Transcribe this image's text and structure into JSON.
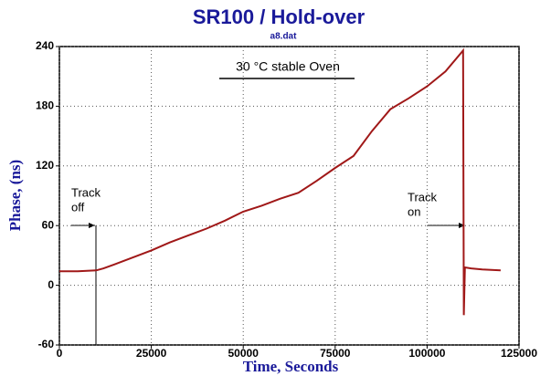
{
  "chart_data": {
    "type": "line",
    "title": "SR100  /  Hold-over",
    "subtitle": "a8.dat",
    "xlabel": "Time, Seconds",
    "ylabel": "Phase, (ns)",
    "annotations": [
      "30 °C  stable Oven",
      "Track",
      "off",
      "Track",
      "on"
    ],
    "x": [
      0,
      5000,
      10000,
      12000,
      15000,
      20000,
      25000,
      30000,
      35000,
      40000,
      45000,
      50000,
      55000,
      60000,
      65000,
      70000,
      75000,
      80000,
      85000,
      90000,
      95000,
      100000,
      105000,
      109800,
      110000,
      110300,
      112000,
      115000,
      120000
    ],
    "values": [
      14,
      14,
      15,
      17,
      21,
      28,
      35,
      43,
      50,
      57,
      65,
      74,
      80,
      87,
      93,
      105,
      118,
      130,
      155,
      177,
      188,
      200,
      215,
      236,
      -30,
      18,
      17,
      16,
      15
    ],
    "color": "#a01818",
    "xlim": [
      0,
      125000
    ],
    "xticks": [
      0,
      25000,
      50000,
      75000,
      100000,
      125000
    ],
    "ylim": [
      -60,
      240
    ],
    "yticks": [
      -60,
      0,
      60,
      120,
      180,
      240
    ],
    "grid": true
  }
}
